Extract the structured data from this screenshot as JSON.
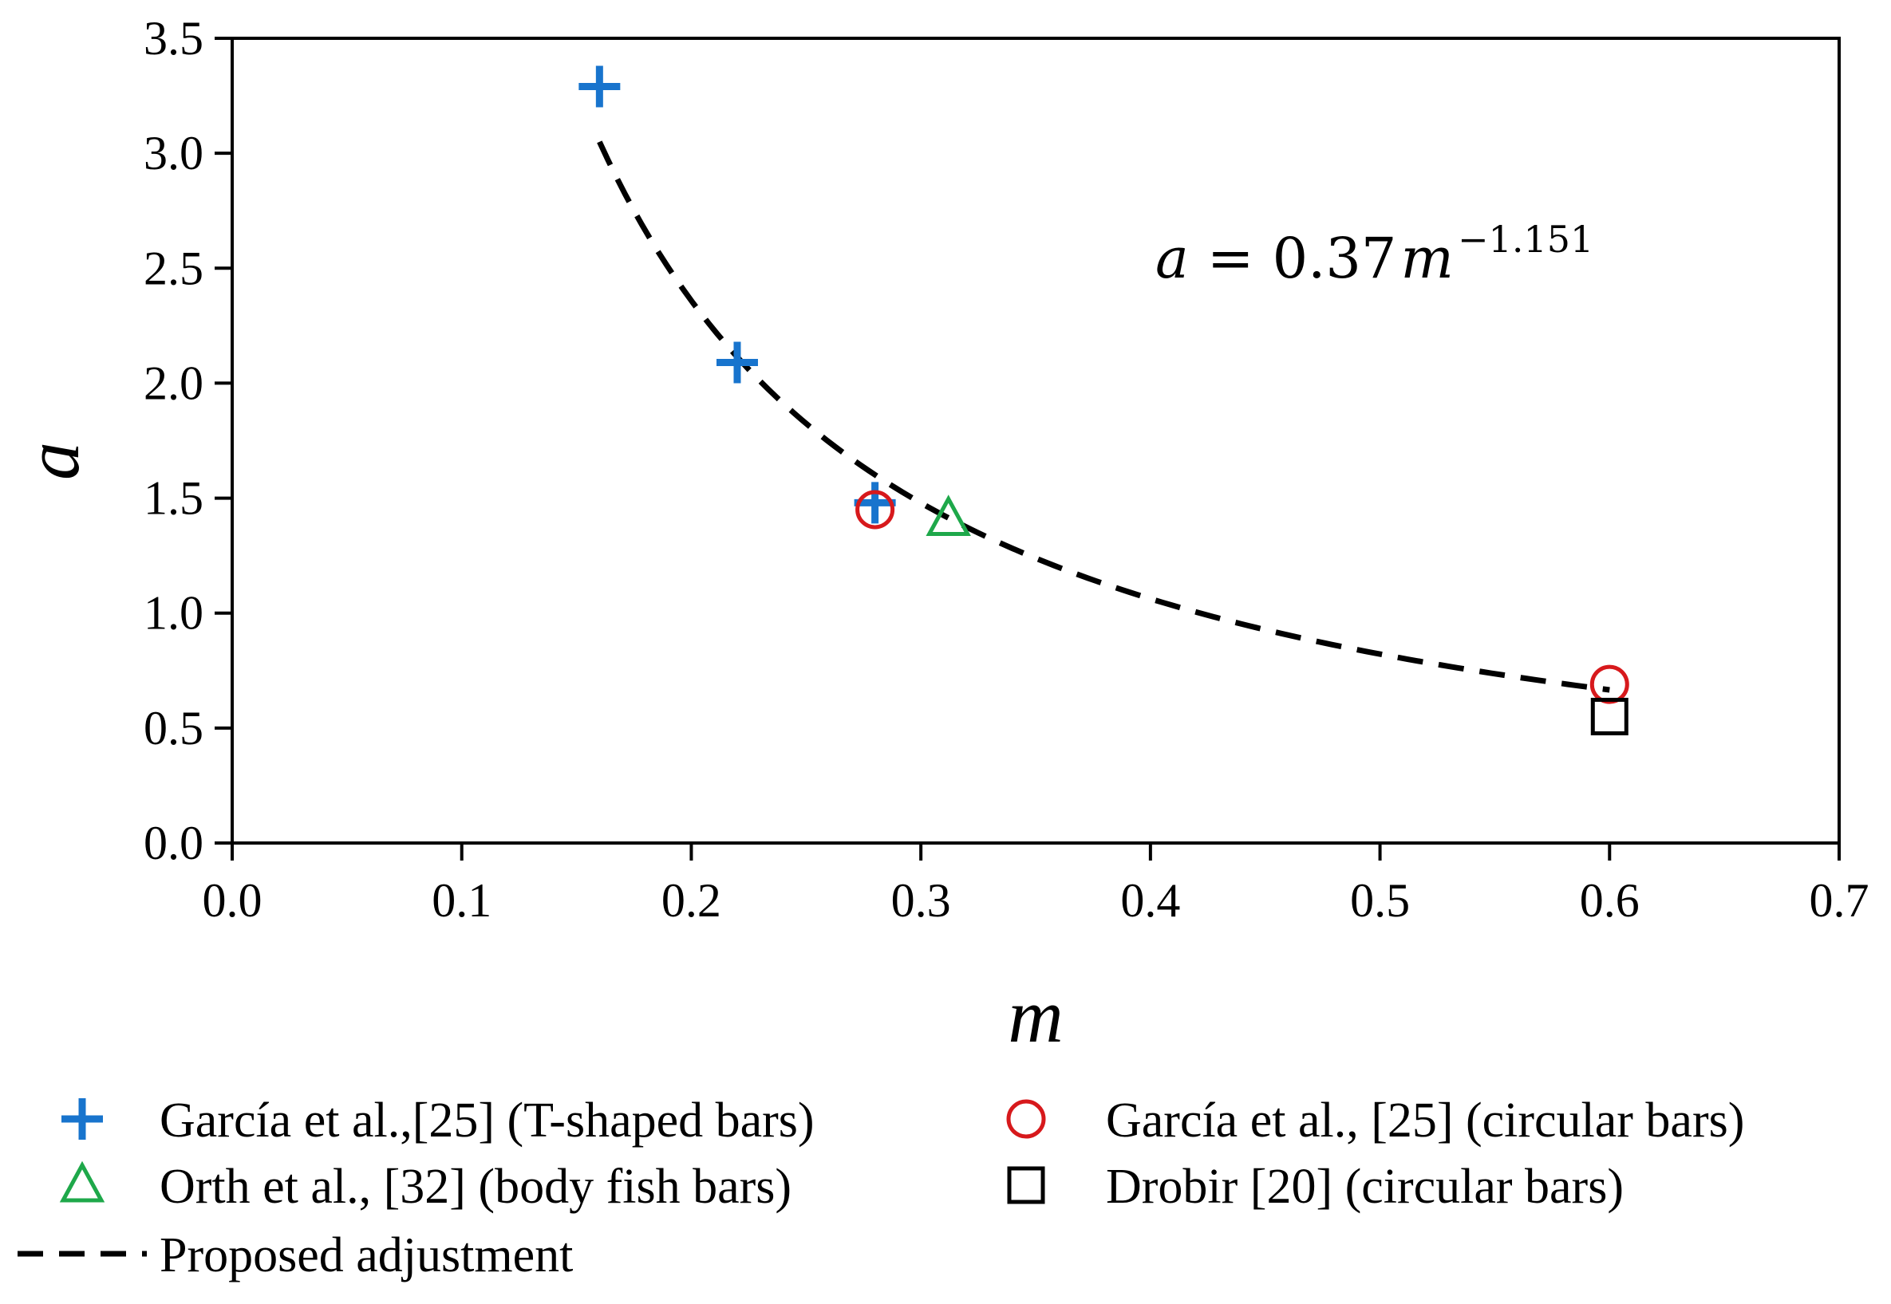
{
  "chart_data": {
    "type": "scatter",
    "title": "",
    "xlabel": "m",
    "ylabel": "a",
    "xlim": [
      0.0,
      0.7
    ],
    "ylim": [
      0.0,
      3.5
    ],
    "x_ticks": [
      "0.0",
      "0.1",
      "0.2",
      "0.3",
      "0.4",
      "0.5",
      "0.6",
      "0.7"
    ],
    "y_ticks": [
      "0.0",
      "0.5",
      "1.0",
      "1.5",
      "2.0",
      "2.5",
      "3.0",
      "3.5"
    ],
    "grid": false,
    "equation": {
      "lhs": "a",
      "eq": "=",
      "coef": "0.37",
      "var": "m",
      "exponent": "−1.151"
    },
    "series": [
      {
        "name": "García et al.,[25] (T-shaped bars)",
        "marker": "plus",
        "color": "#1874CD",
        "points": [
          [
            0.16,
            3.29
          ],
          [
            0.22,
            2.09
          ],
          [
            0.28,
            1.48
          ]
        ]
      },
      {
        "name": "García et al., [25] (circular bars)",
        "marker": "circle",
        "color": "#D7191C",
        "points": [
          [
            0.28,
            1.45
          ],
          [
            0.6,
            0.69
          ]
        ]
      },
      {
        "name": "Orth et al., [32]  (body fish bars)",
        "marker": "triangle",
        "color": "#1EA84A",
        "points": [
          [
            0.312,
            1.41
          ]
        ]
      },
      {
        "name": "Drobir [20] (circular bars)",
        "marker": "square",
        "color": "#000000",
        "points": [
          [
            0.6,
            0.55
          ]
        ]
      }
    ],
    "fit": {
      "name": "Proposed adjustment",
      "style": "dashed",
      "color": "#000000",
      "coefficient": 0.37,
      "exponent": -1.151,
      "x_range": [
        0.16,
        0.6
      ]
    },
    "legend_position": "bottom"
  }
}
